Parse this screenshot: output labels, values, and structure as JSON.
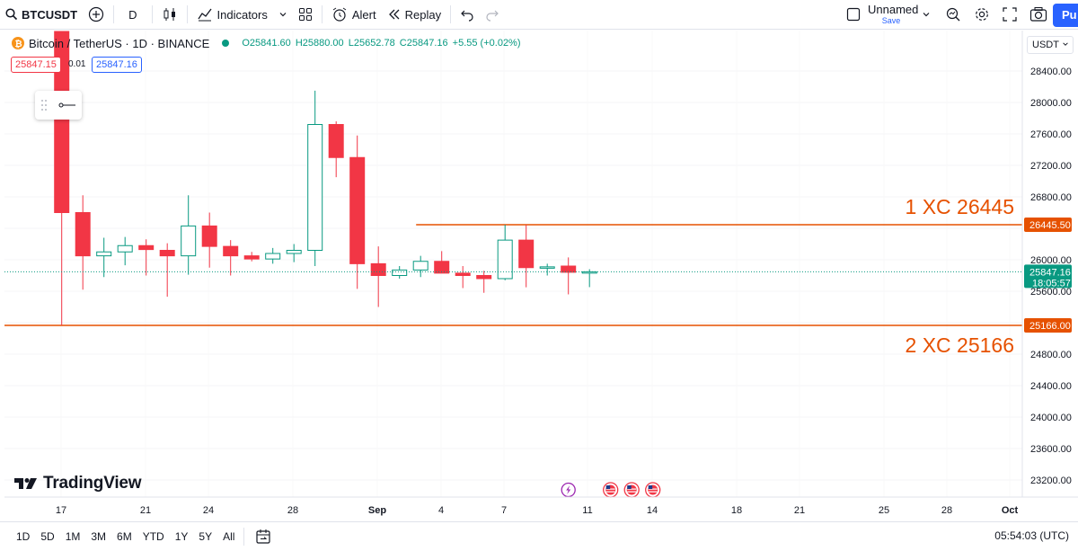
{
  "toolbar": {
    "symbol": "BTCUSDT",
    "interval": "D",
    "indicators_label": "Indicators",
    "alert_label": "Alert",
    "replay_label": "Replay",
    "layout_name": "Unnamed",
    "save_label": "Save",
    "publish_label": "Pu"
  },
  "legend": {
    "symbol_desc": "Bitcoin / TetherUS · 1D · BINANCE",
    "open": "O25841.60",
    "high": "H25880.00",
    "low": "L25652.78",
    "close": "C25847.16",
    "change": "+5.55 (+0.02%)",
    "bid": "25847.15",
    "spread": "0.01",
    "ask": "25847.16"
  },
  "price_axis": {
    "currency": "USDT",
    "ticks": [
      "28400.00",
      "28000.00",
      "27600.00",
      "27200.00",
      "26800.00",
      "26400.00",
      "26000.00",
      "25600.00",
      "25200.00",
      "24800.00",
      "24400.00",
      "24000.00",
      "23600.00",
      "23200.00"
    ]
  },
  "time_axis": {
    "labels": [
      {
        "text": "17",
        "bold": false
      },
      {
        "text": "21",
        "bold": false
      },
      {
        "text": "24",
        "bold": false
      },
      {
        "text": "28",
        "bold": false
      },
      {
        "text": "Sep",
        "bold": true
      },
      {
        "text": "4",
        "bold": false
      },
      {
        "text": "7",
        "bold": false
      },
      {
        "text": "11",
        "bold": false
      },
      {
        "text": "14",
        "bold": false
      },
      {
        "text": "18",
        "bold": false
      },
      {
        "text": "21",
        "bold": false
      },
      {
        "text": "25",
        "bold": false
      },
      {
        "text": "28",
        "bold": false
      },
      {
        "text": "Oct",
        "bold": true
      }
    ]
  },
  "bottombar": {
    "ranges": [
      "1D",
      "5D",
      "1M",
      "3M",
      "6M",
      "YTD",
      "1Y",
      "5Y",
      "All"
    ],
    "clock": "05:54:03 (UTC)"
  },
  "branding": {
    "logo_text": "TradingView"
  },
  "colors": {
    "up": "#089981",
    "down": "#f23645",
    "level": "#e65100",
    "current": "#089981"
  },
  "chart_data": {
    "type": "candlestick",
    "title": "Bitcoin / TetherUS · 1D · BINANCE",
    "y_unit": "USDT",
    "ylim": [
      23000,
      28800
    ],
    "x_start_label": "17",
    "candles": [
      {
        "o": 29100,
        "h": 29250,
        "l": 25166,
        "c": 26600
      },
      {
        "o": 26600,
        "h": 26820,
        "l": 25620,
        "c": 26050
      },
      {
        "o": 26050,
        "h": 26280,
        "l": 25780,
        "c": 26100
      },
      {
        "o": 26100,
        "h": 26290,
        "l": 25930,
        "c": 26180
      },
      {
        "o": 26180,
        "h": 26260,
        "l": 25800,
        "c": 26130
      },
      {
        "o": 26120,
        "h": 26210,
        "l": 25530,
        "c": 26050
      },
      {
        "o": 26050,
        "h": 26820,
        "l": 25810,
        "c": 26430
      },
      {
        "o": 26430,
        "h": 26600,
        "l": 25900,
        "c": 26170
      },
      {
        "o": 26170,
        "h": 26250,
        "l": 25800,
        "c": 26050
      },
      {
        "o": 26050,
        "h": 26100,
        "l": 25980,
        "c": 26010
      },
      {
        "o": 26010,
        "h": 26150,
        "l": 25950,
        "c": 26080
      },
      {
        "o": 26080,
        "h": 26200,
        "l": 25970,
        "c": 26120
      },
      {
        "o": 26120,
        "h": 28150,
        "l": 25920,
        "c": 27720
      },
      {
        "o": 27720,
        "h": 27760,
        "l": 27050,
        "c": 27300
      },
      {
        "o": 27300,
        "h": 27580,
        "l": 25630,
        "c": 25950
      },
      {
        "o": 25950,
        "h": 26170,
        "l": 25400,
        "c": 25800
      },
      {
        "o": 25800,
        "h": 25920,
        "l": 25760,
        "c": 25870
      },
      {
        "o": 25870,
        "h": 26050,
        "l": 25780,
        "c": 25980
      },
      {
        "o": 25980,
        "h": 26110,
        "l": 25860,
        "c": 25830
      },
      {
        "o": 25830,
        "h": 25920,
        "l": 25640,
        "c": 25800
      },
      {
        "o": 25800,
        "h": 25860,
        "l": 25580,
        "c": 25760
      },
      {
        "o": 25760,
        "h": 26445,
        "l": 25740,
        "c": 26250
      },
      {
        "o": 26250,
        "h": 26445,
        "l": 25650,
        "c": 25900
      },
      {
        "o": 25900,
        "h": 25950,
        "l": 25800,
        "c": 25910
      },
      {
        "o": 25920,
        "h": 26030,
        "l": 25560,
        "c": 25841
      },
      {
        "o": 25841,
        "h": 25880,
        "l": 25652,
        "c": 25847
      }
    ],
    "current_price": "25847.16",
    "countdown": "18:05:57",
    "levels": [
      {
        "price": 26445.5,
        "price_label": "26445.50",
        "text": "1 XC 26445",
        "start_index": 17
      },
      {
        "price": 25166,
        "price_label": "25166.00",
        "text": "2 XC 25166",
        "start_index": 0
      }
    ],
    "event_markers": [
      {
        "x_index": 24,
        "kind": "lightning"
      },
      {
        "x_index": 26,
        "kind": "us-flag"
      },
      {
        "x_index": 27,
        "kind": "us-flag"
      },
      {
        "x_index": 28,
        "kind": "us-flag"
      }
    ]
  }
}
